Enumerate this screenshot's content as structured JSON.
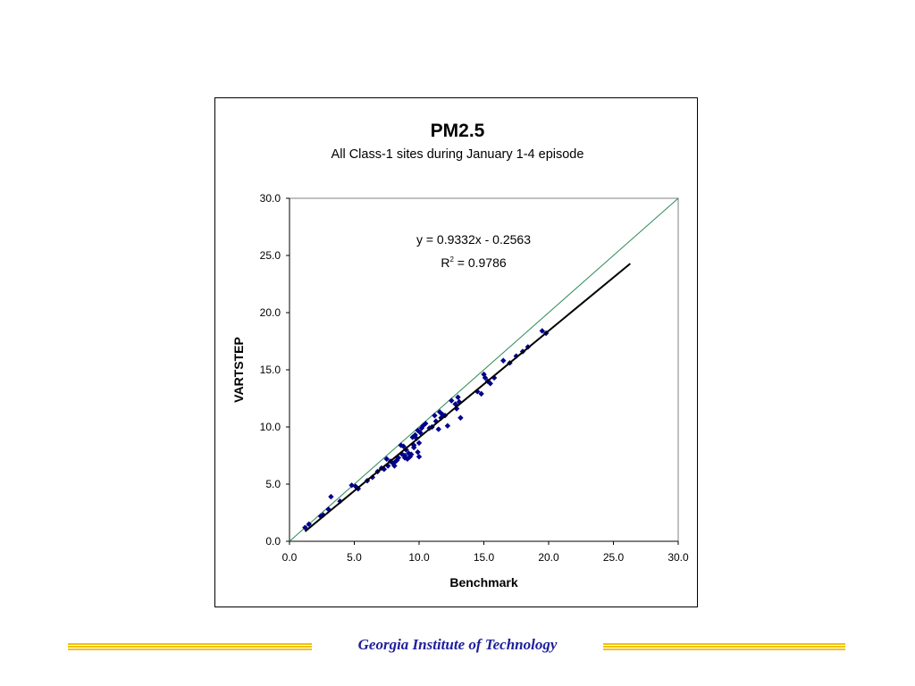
{
  "chart_data": {
    "type": "scatter",
    "title": "PM2.5",
    "subtitle": "All Class-1 sites during January 1-4 episode",
    "xlabel": "Benchmark",
    "ylabel": "VARTSTEP",
    "xlim": [
      0,
      30
    ],
    "ylim": [
      0,
      30
    ],
    "x_ticks": [
      "0.0",
      "5.0",
      "10.0",
      "15.0",
      "20.0",
      "25.0",
      "30.0"
    ],
    "y_ticks": [
      "0.0",
      "5.0",
      "10.0",
      "15.0",
      "20.0",
      "25.0",
      "30.0"
    ],
    "grid": false,
    "legend": "none",
    "regression": {
      "equation": "y = 0.9332x - 0.2563",
      "r2_label": "R",
      "r2_sup": "2",
      "r2_value": " = 0.9786",
      "slope": 0.9332,
      "intercept": -0.2563,
      "x_range": [
        1.2,
        26.3
      ]
    },
    "reference_line": {
      "type": "1:1",
      "x_range": [
        0,
        30
      ]
    },
    "colors": {
      "points": "#00008b",
      "regression": "#000000",
      "reference": "#2e8b57"
    },
    "series": [
      {
        "x": [
          1.2,
          1.5,
          2.4,
          2.6,
          3.0,
          3.2,
          3.9,
          4.8,
          5.1,
          5.3,
          6.0,
          6.4,
          6.8,
          7.1,
          7.3,
          7.5,
          7.6,
          7.8,
          8.0,
          8.1,
          8.2,
          8.4,
          8.6,
          8.7,
          8.8,
          8.9,
          9.0,
          9.1,
          9.2,
          9.3,
          9.4,
          9.5,
          9.6,
          9.7,
          9.8,
          9.9,
          10.0,
          10.1,
          10.2,
          10.3,
          10.5,
          10.8,
          11.0,
          11.2,
          11.3,
          11.5,
          11.6,
          11.7,
          11.8,
          12.0,
          12.2,
          12.5,
          12.8,
          12.9,
          13.0,
          13.1,
          13.2,
          14.5,
          14.8,
          15.0,
          15.1,
          15.3,
          15.5,
          15.8,
          16.5,
          17.0,
          17.5,
          18.0,
          18.4,
          19.5,
          19.8,
          10.0,
          9.9,
          9.6,
          8.9,
          8.3
        ],
        "y": [
          1.2,
          1.5,
          2.2,
          2.3,
          2.8,
          3.9,
          3.5,
          4.9,
          4.8,
          4.6,
          5.3,
          5.6,
          6.1,
          6.4,
          6.3,
          7.2,
          6.6,
          7.0,
          6.8,
          6.6,
          7.0,
          7.3,
          8.4,
          7.6,
          8.3,
          7.5,
          8.0,
          7.2,
          7.7,
          7.4,
          7.6,
          9.1,
          8.2,
          9.3,
          9.0,
          9.7,
          8.6,
          9.5,
          9.9,
          10.1,
          10.3,
          9.9,
          10.0,
          11.0,
          10.5,
          9.8,
          11.3,
          10.8,
          11.1,
          11.0,
          10.1,
          12.3,
          12.0,
          11.6,
          12.6,
          12.2,
          10.8,
          13.1,
          12.9,
          14.6,
          14.3,
          14.0,
          13.8,
          14.3,
          15.8,
          15.6,
          16.2,
          16.6,
          17.0,
          18.4,
          18.2,
          7.4,
          7.8,
          8.4,
          7.3,
          7.1
        ]
      }
    ]
  },
  "footer": {
    "institution": "Georgia Institute of Technology"
  }
}
